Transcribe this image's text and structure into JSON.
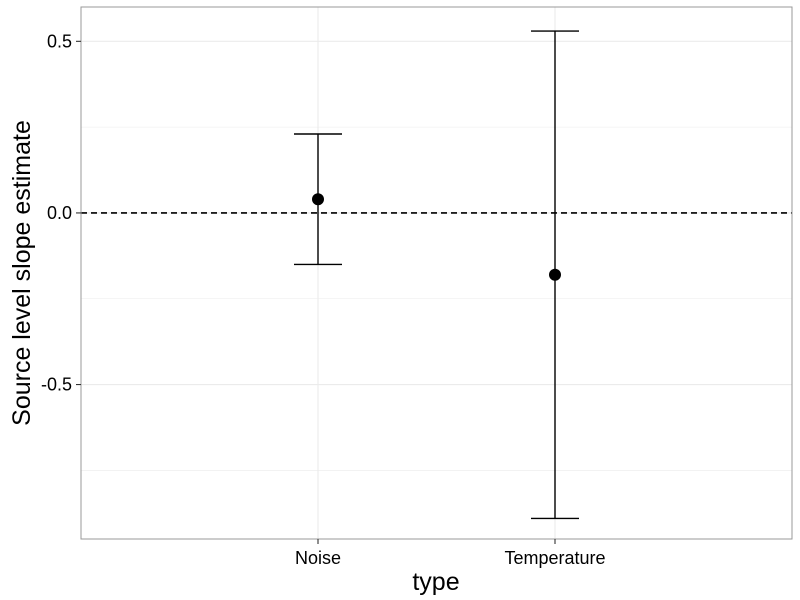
{
  "chart_data": {
    "type": "scatter",
    "title": "",
    "xlabel": "type",
    "ylabel": "Source level slope estimate",
    "categories": [
      "Noise",
      "Temperature"
    ],
    "series": [
      {
        "points": [
          {
            "category": "Noise",
            "estimate": 0.04,
            "lower": -0.15,
            "upper": 0.23
          },
          {
            "category": "Temperature",
            "estimate": -0.18,
            "lower": -0.89,
            "upper": 0.53
          }
        ]
      }
    ],
    "reference_line": {
      "y": 0.0,
      "style": "dashed"
    },
    "ylim": [
      -0.95,
      0.6
    ],
    "y_ticks": [
      {
        "value": 0.5,
        "label": "0.5"
      },
      {
        "value": 0.0,
        "label": "0.0"
      },
      {
        "value": -0.5,
        "label": "-0.5"
      }
    ],
    "y_minor_gridlines": [
      0.25,
      -0.25,
      -0.75
    ],
    "grid": true,
    "legend": "none",
    "colors": {
      "point": "#000000",
      "grid": "#ebebeb",
      "panel_border": "#999999"
    }
  }
}
